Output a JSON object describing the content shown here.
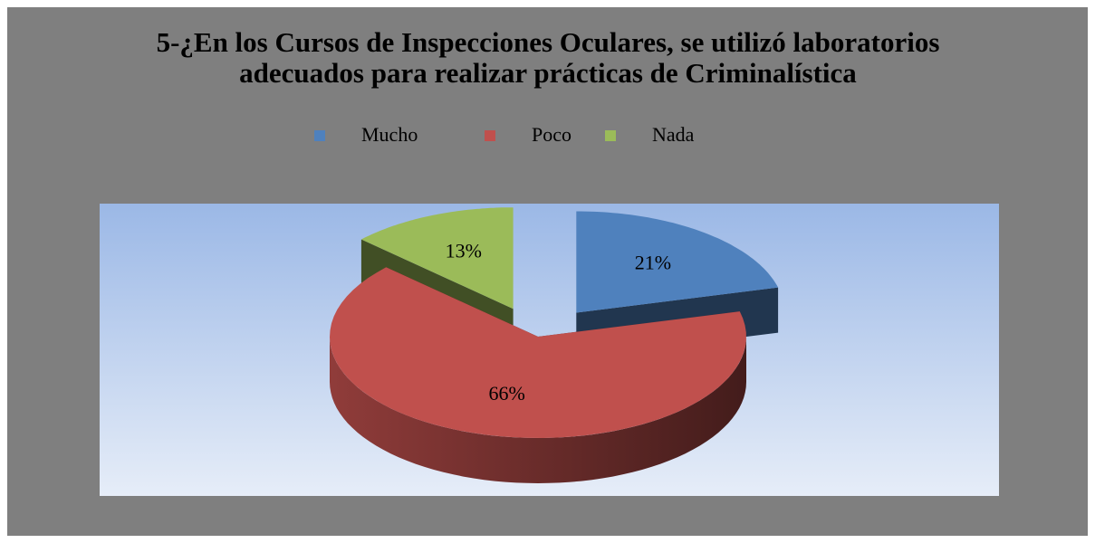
{
  "chart_data": {
    "type": "pie3d",
    "title": "5-¿En los Cursos de Inspecciones Oculares, se utilizó laboratorios adecuados para realizar prácticas de Criminalística",
    "categories": [
      "Mucho",
      "Poco",
      "Nada"
    ],
    "values": [
      21,
      66,
      13
    ],
    "value_labels": [
      "21%",
      "66%",
      "13%"
    ],
    "colors": [
      "#4f81bd",
      "#c0504d",
      "#9bbb59"
    ],
    "exploded": [
      true,
      false,
      true
    ],
    "legend": "top"
  }
}
